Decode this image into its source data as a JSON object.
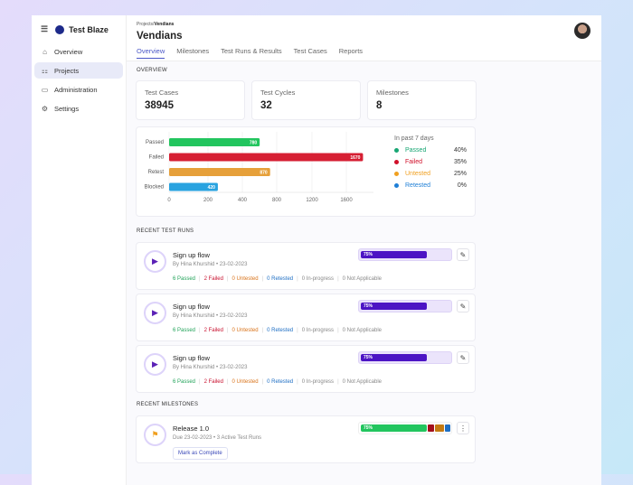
{
  "app": {
    "name": "Test Blaze"
  },
  "sidebar": {
    "items": [
      {
        "label": "Overview",
        "icon": "home-icon"
      },
      {
        "label": "Projects",
        "icon": "projects-icon",
        "active": true
      },
      {
        "label": "Administration",
        "icon": "briefcase-icon"
      },
      {
        "label": "Settings",
        "icon": "gear-icon"
      }
    ]
  },
  "header": {
    "breadcrumb_parent": "Projects/",
    "breadcrumb_current": "Vendians",
    "title": "Vendians",
    "tabs": [
      {
        "label": "Overview",
        "active": true
      },
      {
        "label": "Milestones"
      },
      {
        "label": "Test Runs & Results"
      },
      {
        "label": "Test Cases"
      },
      {
        "label": "Reports"
      }
    ]
  },
  "overview": {
    "heading": "OVERVIEW",
    "cards": [
      {
        "label": "Test Cases",
        "value": "38945"
      },
      {
        "label": "Test Cycles",
        "value": "32"
      },
      {
        "label": "Milestones",
        "value": "8"
      }
    ]
  },
  "chart_data": {
    "type": "bar",
    "orientation": "horizontal",
    "categories": [
      "Passed",
      "Failed",
      "Retest",
      "Blocked"
    ],
    "values": [
      780,
      1670,
      870,
      420
    ],
    "data_labels": [
      "780",
      "1670",
      "870",
      "420"
    ],
    "colors": [
      "#22c55e",
      "#d61f33",
      "#e6a03a",
      "#29a3e0"
    ],
    "xticks": [
      "0",
      "200",
      "400",
      "800",
      "1200",
      "1600"
    ],
    "grid": true
  },
  "summary": {
    "title": "In past 7 days",
    "items": [
      {
        "label": "Passed",
        "pct": "40%",
        "color": "#17a673"
      },
      {
        "label": "Failed",
        "pct": "35%",
        "color": "#d0102a"
      },
      {
        "label": "Untested",
        "pct": "25%",
        "color": "#f0a020"
      },
      {
        "label": "Retested",
        "pct": "0%",
        "color": "#1f7fd6"
      }
    ]
  },
  "runs": {
    "heading": "RECENT TEST RUNS",
    "items": [
      {
        "name": "Sign up flow",
        "meta": "By Hina Khurshid • 23-02-2023",
        "progress": "75%",
        "progress_value": 75,
        "stats": [
          "6 Passed",
          "2 Failed",
          "0 Untested",
          "0 Retested",
          "0 In-progress",
          "0 Not Applicable"
        ]
      },
      {
        "name": "Sign up flow",
        "meta": "By Hina Khurshid • 23-02-2023",
        "progress": "75%",
        "progress_value": 75,
        "stats": [
          "6 Passed",
          "2 Failed",
          "0 Untested",
          "0 Retested",
          "0 In-progress",
          "0 Not Applicable"
        ]
      },
      {
        "name": "Sign up flow",
        "meta": "By Hina Khurshid • 23-02-2023",
        "progress": "75%",
        "progress_value": 75,
        "stats": [
          "6 Passed",
          "2 Failed",
          "0 Untested",
          "0 Retested",
          "0 In-progress",
          "0 Not Applicable"
        ]
      }
    ]
  },
  "milestones": {
    "heading": "RECENT MILESTONES",
    "items": [
      {
        "name": "Release 1.0",
        "meta": "Due 23-02-2023 • 3 Active Test Runs",
        "progress": "75%",
        "button": "Mark as Complete"
      }
    ]
  }
}
